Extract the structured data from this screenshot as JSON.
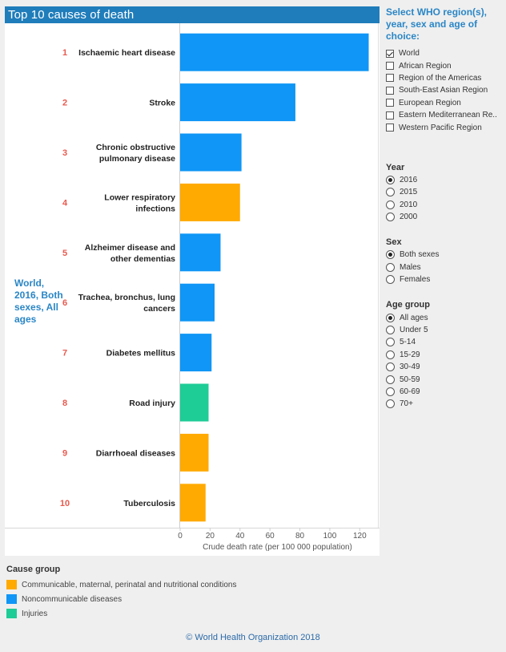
{
  "title": "Top 10 causes of death",
  "subtitle": "World, 2016, Both sexes, All ages",
  "colors": {
    "communicable": "#ffaa00",
    "noncommunicable": "#0f96f6",
    "injuries": "#1ecc96",
    "rank": "#e85a4f",
    "accent": "#2a86c6"
  },
  "chart_data": {
    "type": "bar",
    "orientation": "horizontal",
    "title": "Top 10 causes of death",
    "xlabel": "Crude death rate (per 100 000 population)",
    "xlim": [
      0,
      130
    ],
    "xticks": [
      0,
      20,
      40,
      60,
      80,
      100,
      120
    ],
    "categories": [
      "Ischaemic heart disease",
      "Stroke",
      "Chronic obstructive pulmonary disease",
      "Lower respiratory infections",
      "Alzheimer disease and other dementias",
      "Trachea, bronchus, lung cancers",
      "Diabetes mellitus",
      "Road injury",
      "Diarrhoeal diseases",
      "Tuberculosis"
    ],
    "label_lines": [
      [
        "Ischaemic heart disease"
      ],
      [
        "Stroke"
      ],
      [
        "Chronic obstructive",
        "pulmonary disease"
      ],
      [
        "Lower respiratory",
        "infections"
      ],
      [
        "Alzheimer disease and",
        "other dementias"
      ],
      [
        "Trachea, bronchus, lung",
        "cancers"
      ],
      [
        "Diabetes mellitus"
      ],
      [
        "Road injury"
      ],
      [
        "Diarrhoeal diseases"
      ],
      [
        "Tuberculosis"
      ]
    ],
    "ranks": [
      "1",
      "2",
      "3",
      "4",
      "5",
      "6",
      "7",
      "8",
      "9",
      "10"
    ],
    "values": [
      126,
      77,
      41,
      40,
      27,
      23,
      21,
      19,
      19,
      17
    ],
    "groups": [
      "noncommunicable",
      "noncommunicable",
      "noncommunicable",
      "communicable",
      "noncommunicable",
      "noncommunicable",
      "noncommunicable",
      "injuries",
      "communicable",
      "communicable"
    ]
  },
  "sidebar": {
    "region_heading": "Select WHO region(s), year, sex and age of choice:",
    "regions": [
      {
        "label": "World",
        "checked": true
      },
      {
        "label": "African Region",
        "checked": false
      },
      {
        "label": "Region of the Americas",
        "checked": false
      },
      {
        "label": "South-East Asian Region",
        "checked": false
      },
      {
        "label": "European Region",
        "checked": false
      },
      {
        "label": "Eastern Mediterranean Re..",
        "checked": false
      },
      {
        "label": "Western Pacific Region",
        "checked": false
      }
    ],
    "year_title": "Year",
    "years": [
      {
        "label": "2016",
        "checked": true
      },
      {
        "label": "2015",
        "checked": false
      },
      {
        "label": "2010",
        "checked": false
      },
      {
        "label": "2000",
        "checked": false
      }
    ],
    "sex_title": "Sex",
    "sexes": [
      {
        "label": "Both sexes",
        "checked": true
      },
      {
        "label": "Males",
        "checked": false
      },
      {
        "label": "Females",
        "checked": false
      }
    ],
    "age_title": "Age group",
    "ages": [
      {
        "label": "All ages",
        "checked": true
      },
      {
        "label": "Under 5",
        "checked": false
      },
      {
        "label": "5-14",
        "checked": false
      },
      {
        "label": "15-29",
        "checked": false
      },
      {
        "label": "30-49",
        "checked": false
      },
      {
        "label": "50-59",
        "checked": false
      },
      {
        "label": "60-69",
        "checked": false
      },
      {
        "label": "70+",
        "checked": false
      }
    ]
  },
  "legend": {
    "title": "Cause group",
    "items": [
      {
        "label": "Communicable, maternal, perinatal and nutritional conditions",
        "color": "#ffaa00"
      },
      {
        "label": "Noncommunicable diseases",
        "color": "#0f96f6"
      },
      {
        "label": "Injuries",
        "color": "#1ecc96"
      }
    ]
  },
  "footer": "© World Health Organization 2018"
}
